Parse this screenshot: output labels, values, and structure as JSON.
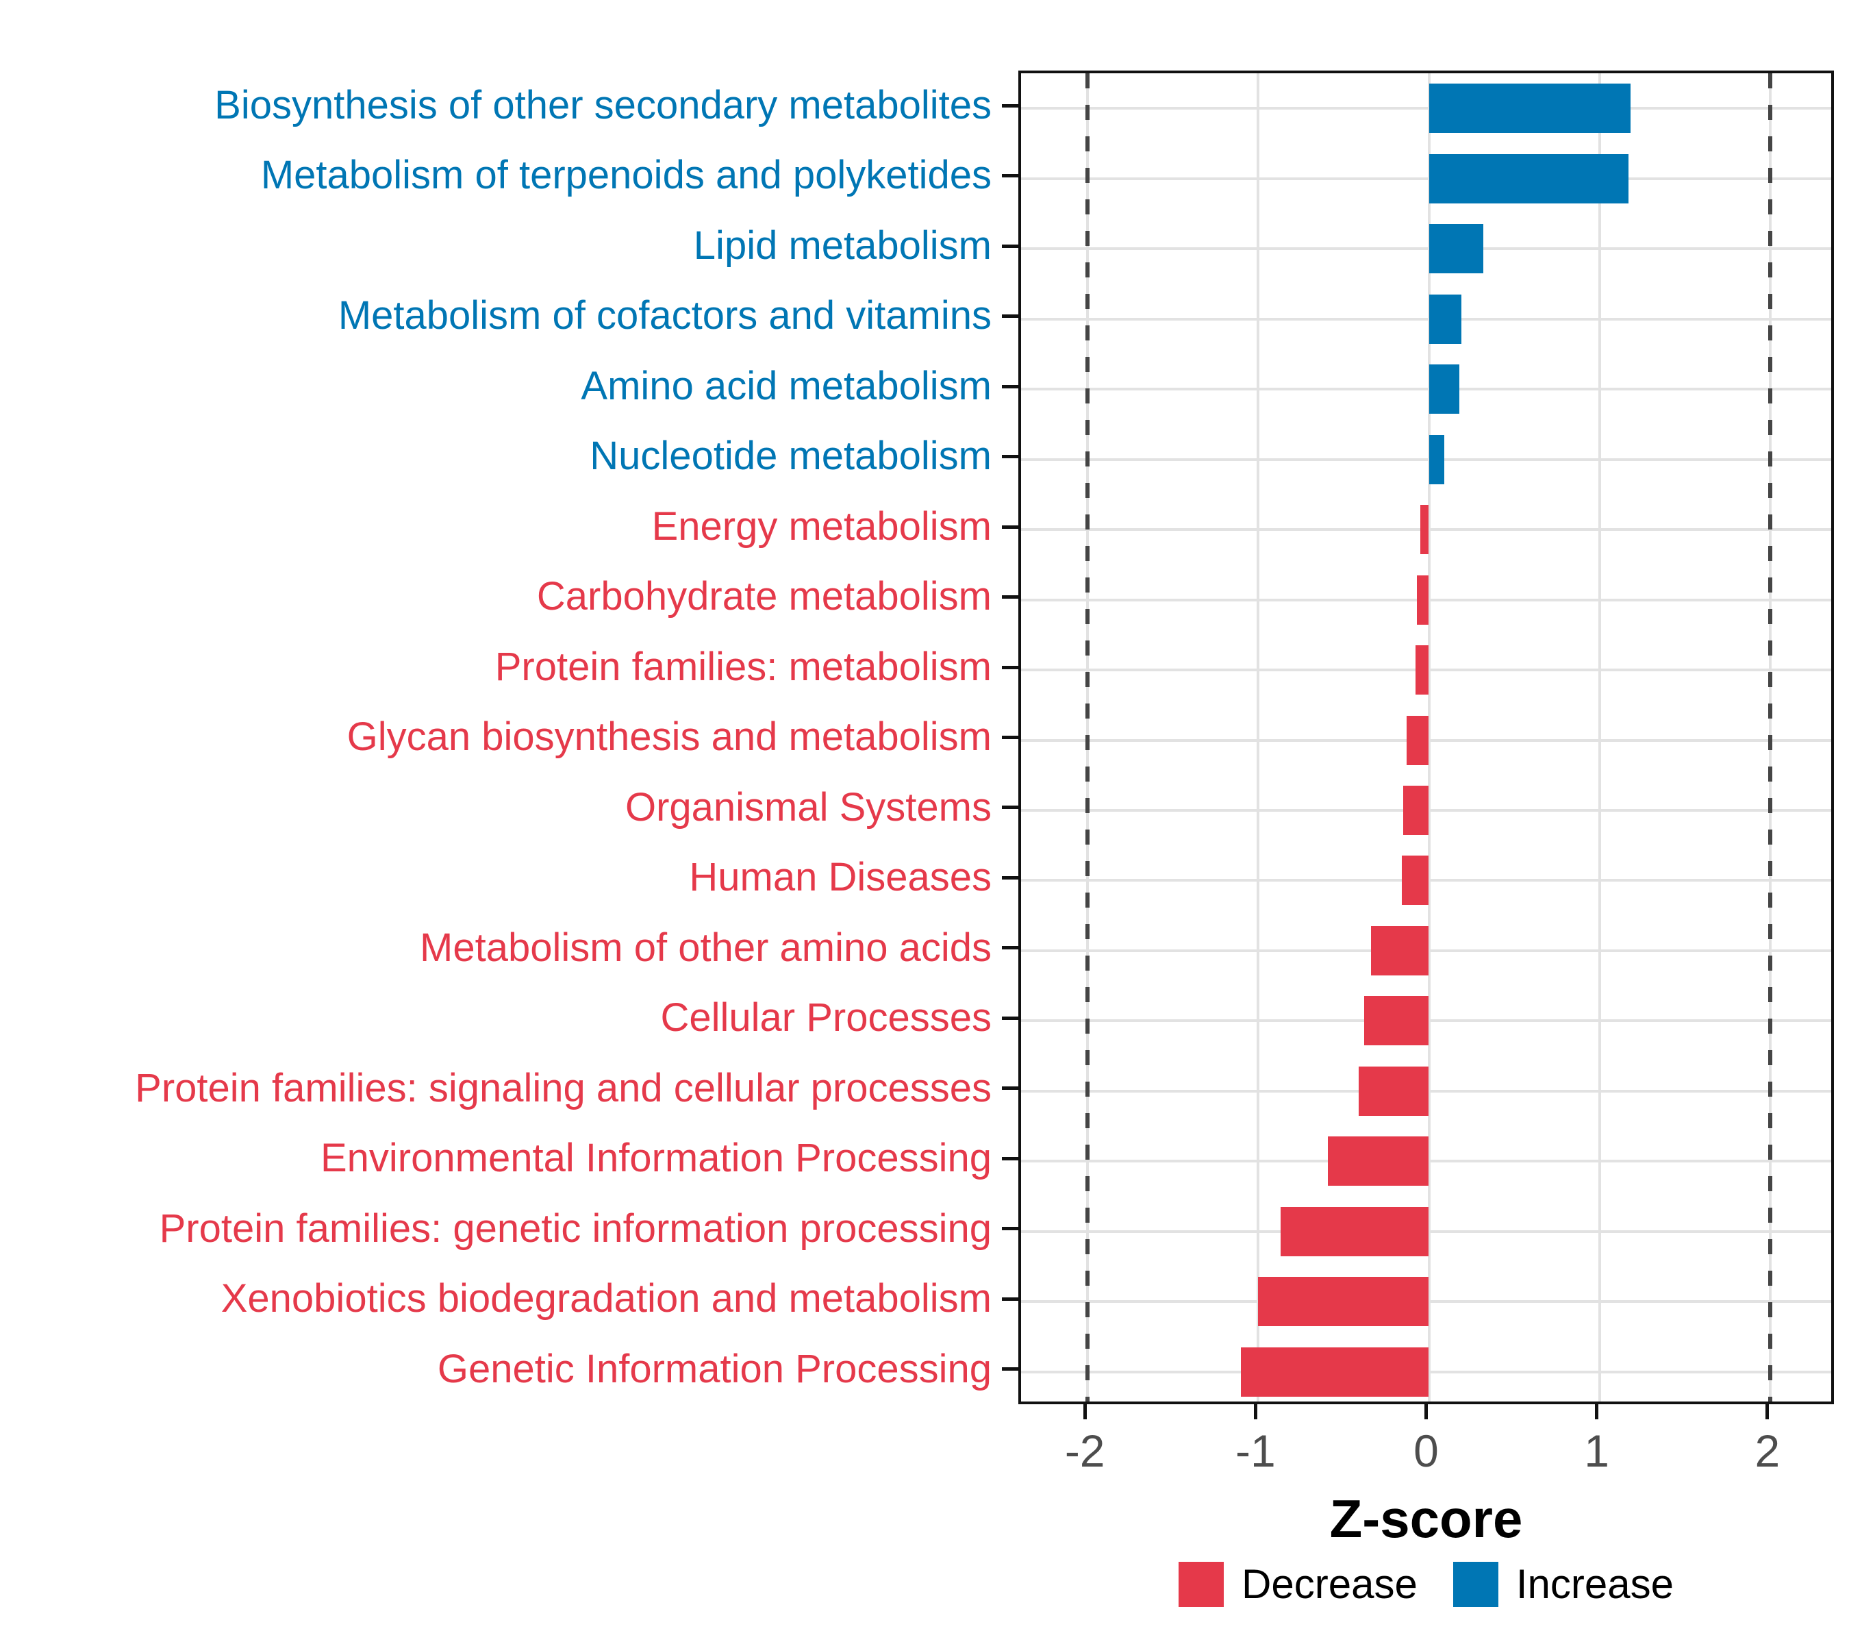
{
  "chart_data": {
    "type": "bar",
    "orientation": "horizontal",
    "title": "",
    "xlabel": "Z-score",
    "ylabel": "",
    "x_ticks": [
      -2,
      -1,
      0,
      1,
      2
    ],
    "x_tick_labels": [
      "-2",
      "-1",
      "0",
      "1",
      "2"
    ],
    "xlim": [
      -2.39,
      2.39
    ],
    "dashed_reference_lines": [
      -2,
      2
    ],
    "grid": true,
    "legend_position": "bottom",
    "items": [
      {
        "label": "Biosynthesis of other secondary metabolites",
        "value": 1.18,
        "direction": "increase"
      },
      {
        "label": "Metabolism of terpenoids and polyketides",
        "value": 1.17,
        "direction": "increase"
      },
      {
        "label": "Lipid metabolism",
        "value": 0.32,
        "direction": "increase"
      },
      {
        "label": "Metabolism of cofactors and vitamins",
        "value": 0.19,
        "direction": "increase"
      },
      {
        "label": "Amino acid metabolism",
        "value": 0.18,
        "direction": "increase"
      },
      {
        "label": "Nucleotide metabolism",
        "value": 0.09,
        "direction": "increase"
      },
      {
        "label": "Energy metabolism",
        "value": -0.05,
        "direction": "decrease"
      },
      {
        "label": "Carbohydrate metabolism",
        "value": -0.07,
        "direction": "decrease"
      },
      {
        "label": "Protein families: metabolism",
        "value": -0.08,
        "direction": "decrease"
      },
      {
        "label": "Glycan biosynthesis and metabolism",
        "value": -0.13,
        "direction": "decrease"
      },
      {
        "label": "Organismal Systems",
        "value": -0.15,
        "direction": "decrease"
      },
      {
        "label": "Human Diseases",
        "value": -0.16,
        "direction": "decrease"
      },
      {
        "label": "Metabolism of other amino acids",
        "value": -0.34,
        "direction": "decrease"
      },
      {
        "label": "Cellular Processes",
        "value": -0.38,
        "direction": "decrease"
      },
      {
        "label": "Protein families: signaling and cellular processes",
        "value": -0.41,
        "direction": "decrease"
      },
      {
        "label": "Environmental Information Processing",
        "value": -0.59,
        "direction": "decrease"
      },
      {
        "label": "Protein families: genetic information processing",
        "value": -0.87,
        "direction": "decrease"
      },
      {
        "label": "Xenobiotics biodegradation and metabolism",
        "value": -1.0,
        "direction": "decrease"
      },
      {
        "label": "Genetic Information Processing",
        "value": -1.1,
        "direction": "decrease"
      }
    ],
    "colors": {
      "increase": "#0076B4",
      "decrease": "#E5394A",
      "gridline": "#E2E2E2",
      "dashed_line": "#454545",
      "axis_text": "#4D4D4D",
      "panel_border": "#111111"
    },
    "legend": [
      {
        "label": "Decrease",
        "color": "#E5394A"
      },
      {
        "label": "Increase",
        "color": "#0076B4"
      }
    ]
  }
}
